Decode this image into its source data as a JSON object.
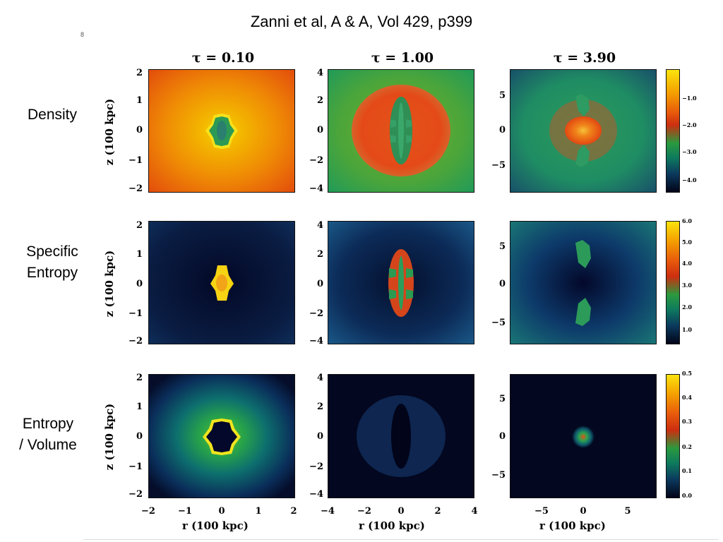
{
  "title": "Zanni et al, A & A, Vol 429, p399",
  "page_mark": "8",
  "taus": [
    "τ = 0.10",
    "τ = 1.00",
    "τ = 3.90"
  ],
  "rows": [
    {
      "label_line1": "Density",
      "label_line2": ""
    },
    {
      "label_line1": "Specific",
      "label_line2": "Entropy"
    },
    {
      "label_line1": "Entropy",
      "label_line2": "/ Volume"
    }
  ],
  "axis": {
    "ylabel": "z (100 kpc)",
    "xlabel": "r (100 kpc)"
  },
  "col1_ticks": [
    "2",
    "1",
    "0",
    "−1",
    "−2"
  ],
  "col2_ticks": [
    "4",
    "2",
    "0",
    "−2",
    "−4"
  ],
  "col3_ticks": [
    "5",
    "0",
    "−5"
  ],
  "col1_xticks": [
    "−2",
    "−1",
    "0",
    "1",
    "2"
  ],
  "col2_xticks": [
    "−4",
    "−2",
    "0",
    "2",
    "4"
  ],
  "col3_xticks": [
    "−5",
    "0",
    "5"
  ],
  "colorbars": [
    {
      "ticks": [
        "−1.0",
        "−2.0",
        "−3.0",
        "−4.0"
      ]
    },
    {
      "ticks": [
        "6.0",
        "5.0",
        "4.0",
        "3.0",
        "2.0",
        "1.0"
      ]
    },
    {
      "ticks": [
        "0.5",
        "0.4",
        "0.3",
        "0.2",
        "0.1",
        "0.0"
      ]
    }
  ]
}
